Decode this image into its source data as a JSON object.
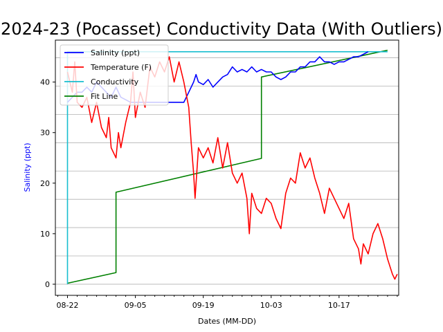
{
  "chart_data": {
    "type": "line",
    "title": "2024-23 (Pocasset) Conductivity Data (With Outliers)",
    "xlabel": "Dates (MM-DD)",
    "ylabel": "Salinity (ppt)",
    "ylabel_color": "#0000ff",
    "x_ticks": [
      "08-22",
      "09-05",
      "09-19",
      "10-03",
      "10-17"
    ],
    "x_tick_days": [
      0,
      14,
      28,
      42,
      56
    ],
    "xlim_days": [
      -2.5,
      68.3
    ],
    "y_ticks": [
      0,
      10,
      20,
      30,
      40
    ],
    "ylim": [
      -2.2,
      48.3
    ],
    "grid": "horizontal",
    "legend_position": "top-left",
    "series": [
      {
        "name": "Salinity (ppt)",
        "color": "#0000ff",
        "points": [
          [
            0,
            36
          ],
          [
            1,
            37
          ],
          [
            2,
            38
          ],
          [
            3,
            38
          ],
          [
            4,
            39
          ],
          [
            5,
            38
          ],
          [
            6,
            40
          ],
          [
            7,
            39
          ],
          [
            8,
            38
          ],
          [
            9,
            37
          ],
          [
            10,
            39
          ],
          [
            11,
            37
          ],
          [
            12,
            36.5
          ],
          [
            13,
            36
          ],
          [
            14,
            36
          ],
          [
            15,
            36
          ],
          [
            16,
            36
          ],
          [
            17,
            36
          ],
          [
            18,
            36
          ],
          [
            19,
            36
          ],
          [
            20,
            36
          ],
          [
            21,
            36
          ],
          [
            22,
            36
          ],
          [
            23,
            36
          ],
          [
            24,
            36
          ],
          [
            25,
            38
          ],
          [
            26,
            40
          ],
          [
            26.5,
            41.5
          ],
          [
            27,
            40
          ],
          [
            28,
            39.5
          ],
          [
            29,
            40.5
          ],
          [
            30,
            39
          ],
          [
            31,
            40
          ],
          [
            32,
            41
          ],
          [
            33,
            41.5
          ],
          [
            34,
            43
          ],
          [
            35,
            42
          ],
          [
            36,
            42.5
          ],
          [
            37,
            42
          ],
          [
            38,
            43
          ],
          [
            39,
            42
          ],
          [
            40,
            42.5
          ],
          [
            41,
            42
          ],
          [
            42,
            42
          ],
          [
            43,
            41
          ],
          [
            44,
            40.5
          ],
          [
            45,
            41
          ],
          [
            46,
            42
          ],
          [
            47,
            42
          ],
          [
            48,
            43
          ],
          [
            49,
            43
          ],
          [
            50,
            44
          ],
          [
            51,
            44
          ],
          [
            52,
            45
          ],
          [
            53,
            44
          ],
          [
            54,
            44
          ],
          [
            55,
            43.5
          ],
          [
            56,
            44
          ],
          [
            57,
            44
          ],
          [
            58,
            44.5
          ],
          [
            59,
            45
          ],
          [
            60,
            45
          ],
          [
            61,
            45.5
          ],
          [
            62,
            46
          ]
        ]
      },
      {
        "name": "Temperature (F)",
        "color": "#ff0000",
        "points": [
          [
            0,
            42
          ],
          [
            1,
            38
          ],
          [
            1.5,
            44
          ],
          [
            2,
            36
          ],
          [
            3,
            35
          ],
          [
            4,
            37
          ],
          [
            5,
            32
          ],
          [
            6,
            36
          ],
          [
            7,
            31
          ],
          [
            8,
            29
          ],
          [
            8.5,
            33
          ],
          [
            9,
            27
          ],
          [
            10,
            25
          ],
          [
            10.5,
            30
          ],
          [
            11,
            27
          ],
          [
            12,
            32
          ],
          [
            13,
            36
          ],
          [
            13.5,
            42
          ],
          [
            14,
            33
          ],
          [
            15,
            38
          ],
          [
            16,
            35
          ],
          [
            17,
            43
          ],
          [
            18,
            41
          ],
          [
            19,
            44
          ],
          [
            20,
            42
          ],
          [
            21,
            45
          ],
          [
            22,
            40
          ],
          [
            23,
            44
          ],
          [
            24,
            40
          ],
          [
            25,
            35
          ],
          [
            25.5,
            28
          ],
          [
            26,
            22
          ],
          [
            26.3,
            17
          ],
          [
            27,
            27
          ],
          [
            28,
            25
          ],
          [
            29,
            27
          ],
          [
            30,
            24
          ],
          [
            31,
            29
          ],
          [
            32,
            23
          ],
          [
            33,
            28
          ],
          [
            34,
            22
          ],
          [
            35,
            20
          ],
          [
            36,
            22
          ],
          [
            37,
            17
          ],
          [
            37.5,
            10
          ],
          [
            38,
            18
          ],
          [
            39,
            15
          ],
          [
            40,
            14
          ],
          [
            41,
            17
          ],
          [
            42,
            16
          ],
          [
            43,
            13
          ],
          [
            44,
            11
          ],
          [
            45,
            18
          ],
          [
            46,
            21
          ],
          [
            47,
            20
          ],
          [
            48,
            26
          ],
          [
            49,
            23
          ],
          [
            50,
            25
          ],
          [
            51,
            21
          ],
          [
            52,
            18
          ],
          [
            53,
            14
          ],
          [
            54,
            19
          ],
          [
            55,
            17
          ],
          [
            56,
            15
          ],
          [
            57,
            13
          ],
          [
            58,
            16
          ],
          [
            59,
            9
          ],
          [
            60,
            7
          ],
          [
            60.5,
            4
          ],
          [
            61,
            8
          ],
          [
            62,
            6
          ],
          [
            63,
            10
          ],
          [
            64,
            12
          ],
          [
            65,
            9
          ],
          [
            66,
            5
          ],
          [
            67,
            2
          ],
          [
            67.5,
            1
          ],
          [
            68,
            2
          ]
        ]
      },
      {
        "name": "Conductivity",
        "color": "#17becf",
        "points": [
          [
            0,
            0
          ],
          [
            0,
            46
          ],
          [
            66,
            46
          ]
        ]
      },
      {
        "name": "Fit Line",
        "color": "#008000",
        "points": [
          [
            0,
            0.2
          ],
          [
            10,
            2.3
          ],
          [
            10,
            18.2
          ],
          [
            40,
            24.9
          ],
          [
            40,
            41
          ],
          [
            66,
            46.3
          ]
        ]
      }
    ]
  }
}
